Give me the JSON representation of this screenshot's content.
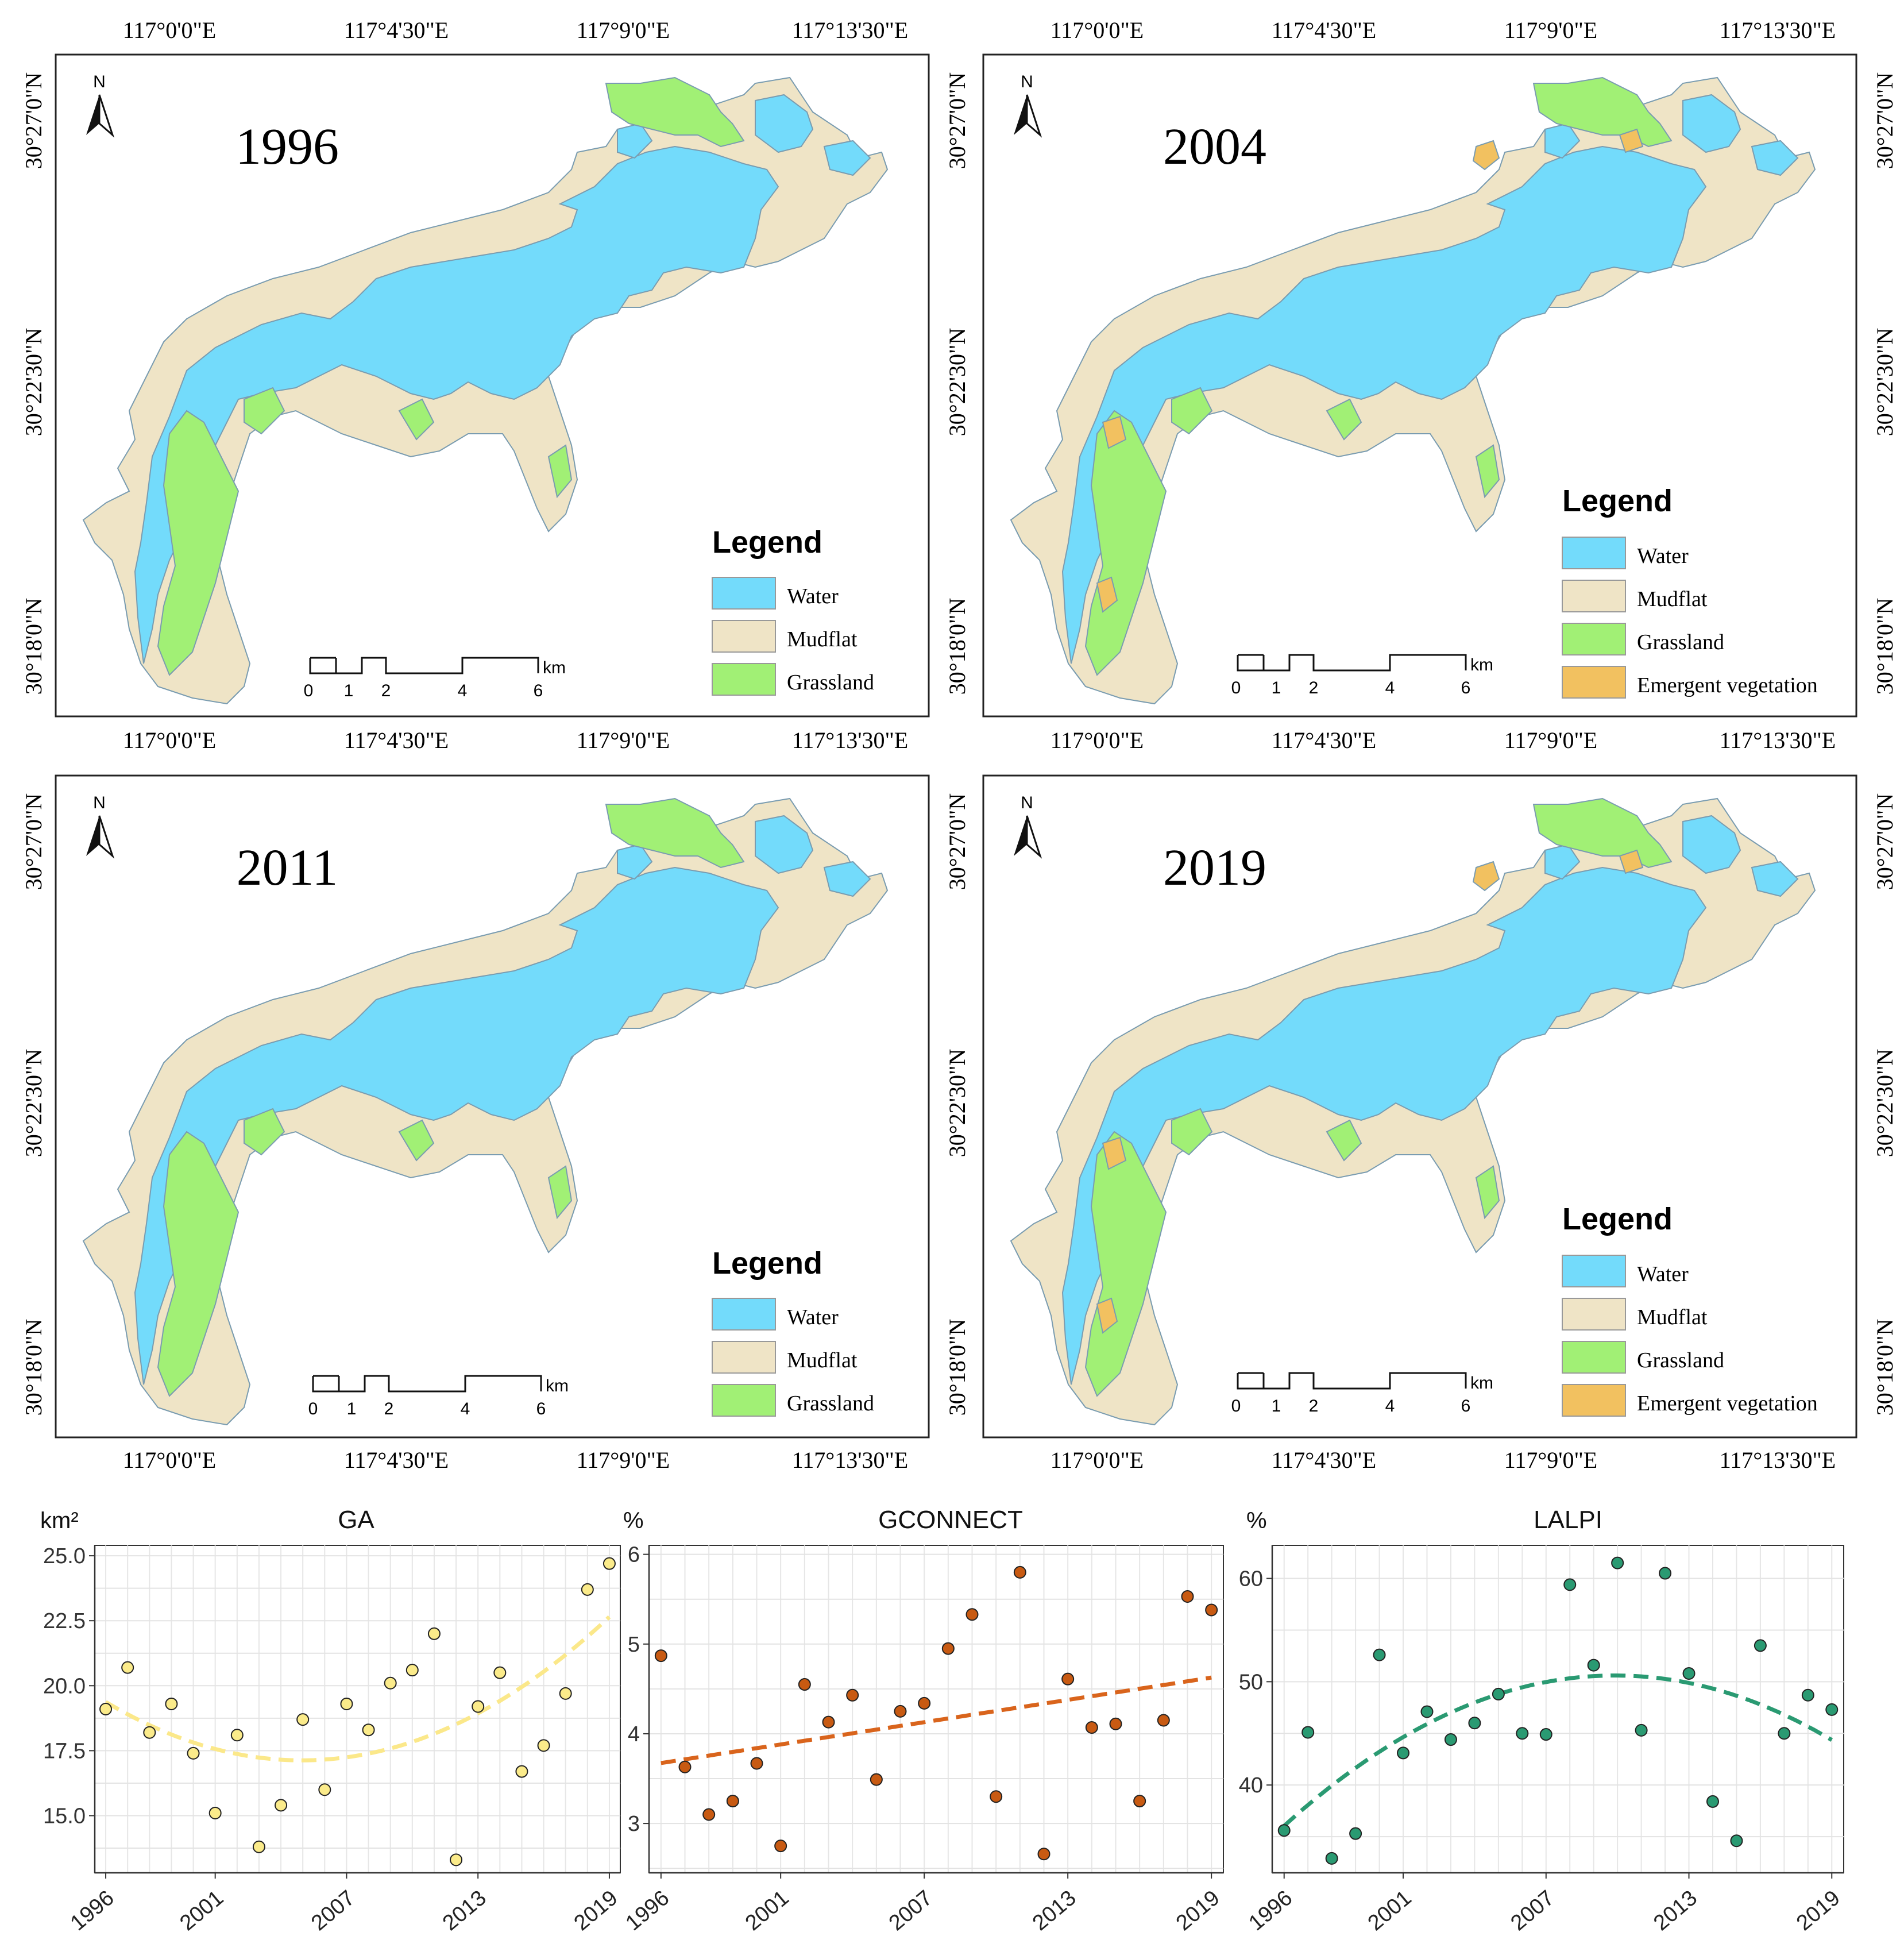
{
  "maps": [
    {
      "year": "1996",
      "legend_title": "Legend",
      "legend_items": [
        "Water",
        "Mudflat",
        "Grassland"
      ]
    },
    {
      "year": "2004",
      "legend_title": "Legend",
      "legend_items": [
        "Water",
        "Mudflat",
        "Grassland",
        "Emergent vegetation"
      ]
    },
    {
      "year": "2011",
      "legend_title": "Legend",
      "legend_items": [
        "Water",
        "Mudflat",
        "Grassland"
      ]
    },
    {
      "year": "2019",
      "legend_title": "Legend",
      "legend_items": [
        "Water",
        "Mudflat",
        "Grassland",
        "Emergent vegetation"
      ]
    }
  ],
  "map_axes": {
    "lon_labels": [
      "117°0'0\"E",
      "117°4'30\"E",
      "117°9'0\"E",
      "117°13'30\"E"
    ],
    "lat_labels": [
      "30°27'0\"N",
      "30°22'30\"N",
      "30°18'0\"N"
    ],
    "north": "N",
    "scale_unit": "km",
    "scale_ticks": [
      "0",
      "1",
      "2",
      "4",
      "6"
    ]
  },
  "colors": {
    "water": "#73dbfb",
    "mudflat": "#efe4c6",
    "grassland": "#a1f075",
    "emergent": "#f2c160",
    "ga_point": "#fbeb8a",
    "ga_trend": "#fbe88a",
    "gconnect_point": "#c85a12",
    "gconnect_trend": "#d9641c",
    "lalpi_point": "#2a9a72",
    "lalpi_trend": "#2a9a72"
  },
  "chart_data": [
    {
      "type": "scatter",
      "title": "GA",
      "ylabel": "km²",
      "x": [
        1996,
        1997,
        1998,
        1999,
        2000,
        2001,
        2002,
        2003,
        2004,
        2005,
        2006,
        2007,
        2008,
        2009,
        2010,
        2011,
        2012,
        2013,
        2014,
        2015,
        2016,
        2017,
        2018,
        2019
      ],
      "y": [
        19.1,
        20.7,
        18.2,
        19.3,
        17.4,
        15.1,
        18.1,
        13.8,
        15.4,
        18.7,
        16.0,
        19.3,
        18.3,
        20.1,
        20.6,
        22.0,
        13.3,
        19.2,
        20.5,
        16.7,
        17.7,
        19.7,
        23.7,
        24.7
      ],
      "trend_type": "quadratic",
      "xlim": [
        1995.5,
        2019.5
      ],
      "ylim": [
        12.8,
        25.4
      ],
      "yticks": [
        15.0,
        17.5,
        20.0,
        22.5,
        25.0
      ],
      "ytick_labels": [
        "15.0",
        "17.5",
        "20.0",
        "22.5",
        "25.0"
      ],
      "xticks": [
        1996,
        2001,
        2007,
        2013,
        2019
      ],
      "xtick_labels": [
        "1996",
        "2001",
        "2007",
        "2013",
        "2019"
      ]
    },
    {
      "type": "scatter",
      "title": "GCONNECT",
      "ylabel": "%",
      "x": [
        1996,
        1997,
        1998,
        1999,
        2000,
        2001,
        2002,
        2003,
        2004,
        2005,
        2006,
        2007,
        2008,
        2009,
        2010,
        2011,
        2012,
        2013,
        2014,
        2015,
        2016,
        2017,
        2018,
        2019
      ],
      "y": [
        4.87,
        3.63,
        3.1,
        3.25,
        3.67,
        2.75,
        4.55,
        4.13,
        4.43,
        3.49,
        4.25,
        4.34,
        4.95,
        5.33,
        3.3,
        5.8,
        2.66,
        4.61,
        4.07,
        4.11,
        3.25,
        4.15,
        5.53,
        5.38
      ],
      "trend_type": "linear",
      "xlim": [
        1995.5,
        2019.5
      ],
      "ylim": [
        2.45,
        6.1
      ],
      "yticks": [
        3,
        4,
        5,
        6
      ],
      "ytick_labels": [
        "3",
        "4",
        "5",
        "6"
      ],
      "xticks": [
        1996,
        2001,
        2007,
        2013,
        2019
      ],
      "xtick_labels": [
        "1996",
        "2001",
        "2007",
        "2013",
        "2019"
      ]
    },
    {
      "type": "scatter",
      "title": "LALPI",
      "ylabel": "%",
      "x": [
        1996,
        1997,
        1998,
        1999,
        2000,
        2001,
        2002,
        2003,
        2004,
        2005,
        2006,
        2007,
        2008,
        2009,
        2010,
        2011,
        2012,
        2013,
        2014,
        2015,
        2016,
        2017,
        2018,
        2019
      ],
      "y": [
        35.6,
        45.1,
        32.9,
        35.3,
        52.6,
        43.1,
        47.1,
        44.4,
        46.0,
        48.8,
        45.0,
        44.9,
        59.4,
        51.6,
        61.5,
        45.3,
        60.5,
        50.8,
        38.4,
        34.6,
        53.5,
        45.0,
        48.7,
        47.3
      ],
      "trend_type": "quadratic",
      "xlim": [
        1995.5,
        2019.5
      ],
      "ylim": [
        31.5,
        63.2
      ],
      "yticks": [
        40,
        50,
        60
      ],
      "ytick_labels": [
        "40",
        "50",
        "60"
      ],
      "xticks": [
        1996,
        2001,
        2007,
        2013,
        2019
      ],
      "xtick_labels": [
        "1996",
        "2001",
        "2007",
        "2013",
        "2019"
      ]
    }
  ]
}
